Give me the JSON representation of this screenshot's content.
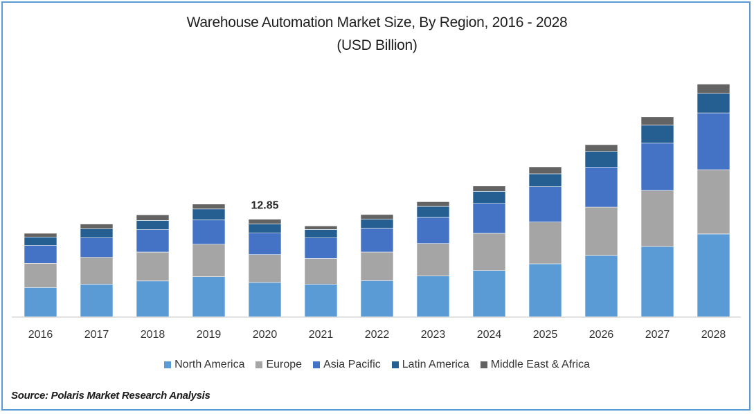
{
  "chart_data": {
    "type": "bar",
    "stacked": true,
    "title": "Warehouse Automation Market Size, By Region, 2016 - 2028",
    "subtitle": "(USD Billion)",
    "xlabel": "",
    "ylabel": "",
    "ylim": [
      0,
      31
    ],
    "grid": false,
    "legend_position": "bottom",
    "categories": [
      "2016",
      "2017",
      "2018",
      "2019",
      "2020",
      "2021",
      "2022",
      "2023",
      "2024",
      "2025",
      "2026",
      "2027",
      "2028"
    ],
    "series": [
      {
        "name": "North America",
        "color": "#5b9bd5",
        "values": [
          3.88,
          4.3,
          4.75,
          5.3,
          4.55,
          4.3,
          4.79,
          5.39,
          6.12,
          7.0,
          8.09,
          9.27,
          10.91
        ]
      },
      {
        "name": "Europe",
        "color": "#a5a5a5",
        "values": [
          3.18,
          3.55,
          3.79,
          4.27,
          3.66,
          3.39,
          3.76,
          4.27,
          4.88,
          5.48,
          6.36,
          7.36,
          8.45
        ]
      },
      {
        "name": "Asia Pacific",
        "color": "#4472c4",
        "values": [
          2.34,
          2.55,
          2.94,
          3.18,
          2.82,
          2.7,
          3.09,
          3.43,
          3.94,
          4.64,
          5.25,
          6.21,
          7.45
        ]
      },
      {
        "name": "Latin America",
        "color": "#255e91",
        "values": [
          1.12,
          1.21,
          1.21,
          1.45,
          1.21,
          1.12,
          1.21,
          1.45,
          1.57,
          1.7,
          2.06,
          2.36,
          2.57
        ]
      },
      {
        "name": "Middle East & Africa",
        "color": "#636363",
        "values": [
          0.48,
          0.61,
          0.73,
          0.64,
          0.61,
          0.45,
          0.61,
          0.61,
          0.7,
          0.91,
          0.88,
          1.09,
          1.21
        ]
      }
    ],
    "annotations": [
      {
        "category": "2020",
        "text": "12.85"
      }
    ]
  },
  "source": "Source: Polaris  Market Research Analysis",
  "colors": {
    "frame_border": "#5b9bd5",
    "axis_line": "#d9d9d9"
  }
}
